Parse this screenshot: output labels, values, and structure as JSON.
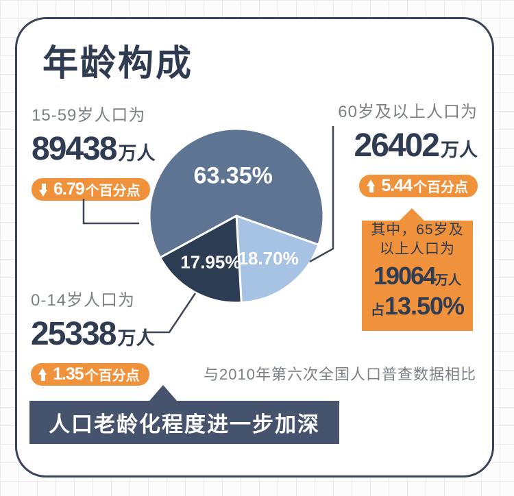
{
  "title": "年龄构成",
  "groups": {
    "age_15_59": {
      "label": "15-59岁人口为",
      "value": "89438",
      "unit": "万人",
      "change_value": "6.79",
      "change_suffix": "个百分点",
      "direction": "down"
    },
    "age_60_plus": {
      "label": "60岁及以上人口为",
      "value": "26402",
      "unit": "万人",
      "change_value": "5.44",
      "change_suffix": "个百分点",
      "direction": "up"
    },
    "age_0_14": {
      "label": "0-14岁人口为",
      "value": "25338",
      "unit": "万人",
      "change_value": "1.35",
      "change_suffix": "个百分点",
      "direction": "up"
    }
  },
  "callout_65plus": {
    "line1": "其中，65岁及",
    "line2": "以上人口为",
    "value": "19064",
    "unit": "万人",
    "prefix": "占",
    "percent": "13.50%"
  },
  "compare_note": "与2010年第六次全国人口普查数据相比",
  "banner_text": "人口老龄化程度进一步加深",
  "colors": {
    "accent_orange": "#F0913C",
    "navy_text": "#2F3C52",
    "gray_text": "#7B7F86",
    "banner_bg": "#45546C",
    "card_border": "#3B4456",
    "slice_15_59": "#5D7493",
    "slice_60_plus": "#A7C3E3",
    "slice_0_14": "#2C3C53"
  },
  "chart_data": {
    "type": "pie",
    "title": "年龄构成（与2010年第六次全国人口普查数据相比）",
    "start_angle_deg": 19.4,
    "direction": "clockwise",
    "legend_position": "none",
    "slices": [
      {
        "id": "60-plus",
        "label": "60岁及以上",
        "percent": 18.7,
        "display": "18.70%",
        "color": "#A7C3E3",
        "label_color": "#FFFFFF"
      },
      {
        "id": "0-14",
        "label": "0-14岁",
        "percent": 17.95,
        "display": "17.95%",
        "color": "#2C3C53",
        "label_color": "#FFFFFF"
      },
      {
        "id": "15-59",
        "label": "15-59岁",
        "percent": 63.35,
        "display": "63.35%",
        "color": "#5D7493",
        "label_color": "#FFFFFF"
      }
    ]
  }
}
